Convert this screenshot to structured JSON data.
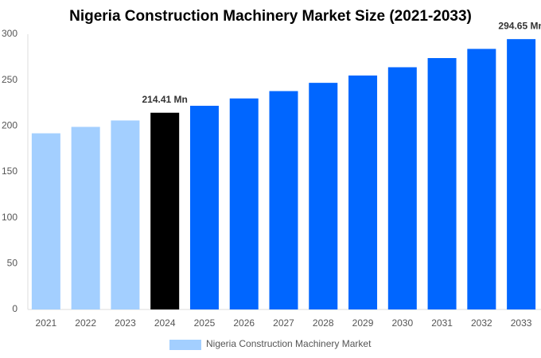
{
  "chart_data": {
    "type": "bar",
    "title": "Nigeria Construction Machinery Market Size (2021-2033)",
    "categories": [
      "2021",
      "2022",
      "2023",
      "2024",
      "2025",
      "2026",
      "2027",
      "2028",
      "2029",
      "2030",
      "2031",
      "2032",
      "2033"
    ],
    "series": [
      {
        "name": "Nigeria Construction Machinery Market",
        "color": "#a3cfff",
        "colors": [
          "#a3cfff",
          "#a3cfff",
          "#a3cfff",
          "#000000",
          "#0066ff",
          "#0066ff",
          "#0066ff",
          "#0066ff",
          "#0066ff",
          "#0066ff",
          "#0066ff",
          "#0066ff",
          "#0066ff"
        ],
        "values": [
          192,
          199,
          206,
          214.41,
          222,
          230,
          238,
          247,
          255,
          264,
          274,
          284,
          294.65
        ],
        "value_labels": [
          null,
          null,
          null,
          "214.41 Mn",
          null,
          null,
          null,
          null,
          null,
          null,
          null,
          null,
          "294.65 Mn"
        ]
      }
    ],
    "ylim": [
      0,
      300
    ],
    "yticks": [
      0,
      50,
      100,
      150,
      200,
      250,
      300
    ],
    "grid": false,
    "legend": "bottom"
  }
}
